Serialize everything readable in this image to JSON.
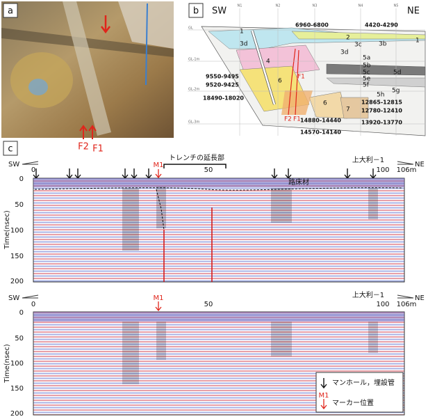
{
  "panel_a": {
    "label": "a",
    "markers": [
      "F2",
      "F1"
    ]
  },
  "panel_b": {
    "label": "b",
    "sw": "SW",
    "ne": "NE",
    "columns": [
      "N1",
      "N2",
      "N3",
      "N4",
      "N5"
    ],
    "depths": [
      "GL",
      "GL-1m",
      "GL-2m",
      "GL-3m"
    ],
    "units": [
      "1",
      "3d",
      "2",
      "3c",
      "3b",
      "1",
      "3d",
      "5a",
      "4",
      "5b",
      "5c",
      "5d",
      "5e",
      "5f",
      "6",
      "5h",
      "5g",
      "6",
      "7"
    ],
    "ages": [
      "6960-6800",
      "4420-4290",
      "9550-9495",
      "9520-9425",
      "18490-18020",
      "12865-12815",
      "12780-12410",
      "14880-14440",
      "13920-13770",
      "14570-14140"
    ],
    "faults": [
      "F1",
      "F2",
      "F1"
    ]
  },
  "panel_c": {
    "label": "c",
    "sw": "SW",
    "ne": "NE",
    "station": "上大利－1",
    "marker": "M1",
    "trench": "トレンチの延長部",
    "road_bed": "路床材",
    "y_axis_title": "Time(nsec)",
    "y_ticks": [
      "0",
      "50",
      "100",
      "150",
      "200"
    ],
    "x_ticks": [
      "0",
      "50",
      "100",
      "106m"
    ],
    "legend": [
      "マンホール，埋設管",
      "マーカー位置"
    ]
  }
}
